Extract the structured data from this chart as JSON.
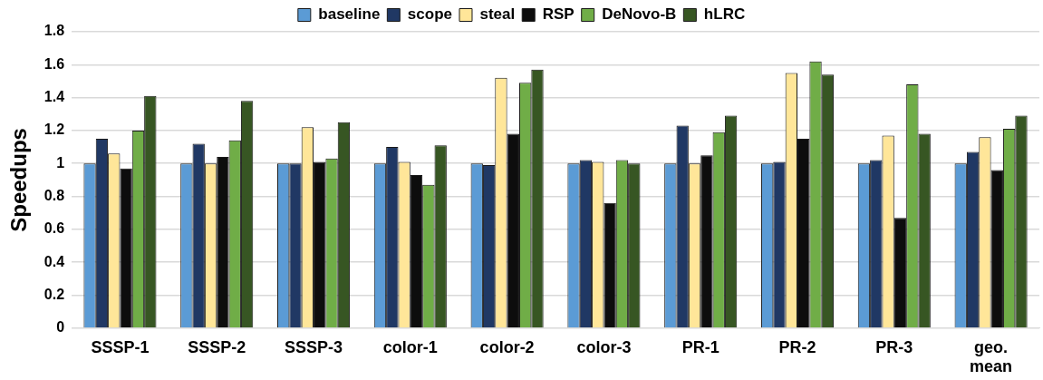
{
  "chart_data": {
    "type": "bar",
    "ylabel": "Speedups",
    "categories": [
      "SSSP-1",
      "SSSP-2",
      "SSSP-3",
      "color-1",
      "color-2",
      "color-3",
      "PR-1",
      "PR-2",
      "PR-3",
      "geo. mean"
    ],
    "series": [
      {
        "name": "baseline",
        "color": "#5b9bd5",
        "values": [
          1,
          1,
          1,
          1,
          1,
          1,
          1,
          1,
          1,
          1
        ]
      },
      {
        "name": "scope",
        "color": "#203864",
        "values": [
          1.15,
          1.12,
          1.0,
          1.1,
          0.99,
          1.02,
          1.23,
          1.01,
          1.02,
          1.07
        ]
      },
      {
        "name": "steal",
        "color": "#ffe699",
        "values": [
          1.06,
          1.0,
          1.22,
          1.01,
          1.52,
          1.01,
          1.0,
          1.55,
          1.17,
          1.16
        ]
      },
      {
        "name": "RSP",
        "color": "#0d0d0d",
        "values": [
          0.97,
          1.04,
          1.01,
          0.93,
          1.18,
          0.76,
          1.05,
          1.15,
          0.67,
          0.96
        ]
      },
      {
        "name": "DeNovo-B",
        "color": "#70ad47",
        "values": [
          1.2,
          1.14,
          1.03,
          0.87,
          1.49,
          1.02,
          1.19,
          1.62,
          1.48,
          1.21
        ]
      },
      {
        "name": "hLRC",
        "color": "#375623",
        "values": [
          1.41,
          1.38,
          1.25,
          1.11,
          1.57,
          1.0,
          1.29,
          1.54,
          1.18,
          1.29
        ]
      }
    ],
    "ylim": [
      0,
      1.8
    ],
    "yticks": [
      0,
      0.2,
      0.4,
      0.6,
      0.8,
      1,
      1.2,
      1.4,
      1.6,
      1.8
    ],
    "grid": "y",
    "legend": "top"
  }
}
